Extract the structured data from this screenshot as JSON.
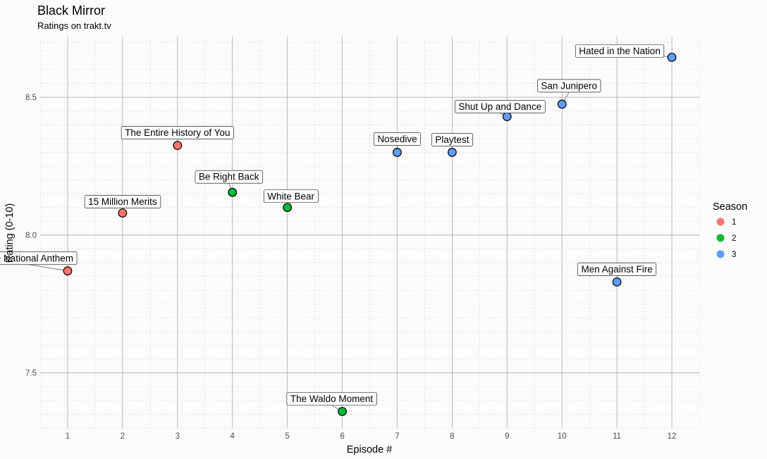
{
  "chart_data": {
    "type": "scatter",
    "title": "Black Mirror",
    "subtitle": "Ratings on trakt.tv",
    "xlabel": "Episode #",
    "ylabel": "Rating (0-10)",
    "xlim": [
      0.5,
      12.5
    ],
    "ylim": [
      7.3,
      8.72
    ],
    "x_ticks": [
      1,
      2,
      3,
      4,
      5,
      6,
      7,
      8,
      9,
      10,
      11,
      12
    ],
    "y_ticks": [
      7.5,
      8.0,
      8.5
    ],
    "y_tick_labels": [
      "7.5",
      "8.0",
      "8.5"
    ],
    "grid": true,
    "legend": {
      "title": "Season",
      "position": "right",
      "items": [
        {
          "label": "1",
          "color": "#f8766d"
        },
        {
          "label": "2",
          "color": "#00ba38"
        },
        {
          "label": "3",
          "color": "#619cff"
        }
      ]
    },
    "points": [
      {
        "episode": 1,
        "rating": 7.87,
        "season": "1",
        "label": "The National Anthem"
      },
      {
        "episode": 2,
        "rating": 8.08,
        "season": "1",
        "label": "15 Million Merits"
      },
      {
        "episode": 3,
        "rating": 8.325,
        "season": "1",
        "label": "The Entire History of You"
      },
      {
        "episode": 4,
        "rating": 8.155,
        "season": "2",
        "label": "Be Right Back"
      },
      {
        "episode": 5,
        "rating": 8.1,
        "season": "2",
        "label": "White Bear"
      },
      {
        "episode": 6,
        "rating": 7.36,
        "season": "2",
        "label": "The Waldo Moment"
      },
      {
        "episode": 7,
        "rating": 8.3,
        "season": "3",
        "label": "Nosedive"
      },
      {
        "episode": 8,
        "rating": 8.3,
        "season": "3",
        "label": "Playtest"
      },
      {
        "episode": 9,
        "rating": 8.43,
        "season": "3",
        "label": "Shut Up and Dance"
      },
      {
        "episode": 10,
        "rating": 8.475,
        "season": "3",
        "label": "San Junipero"
      },
      {
        "episode": 11,
        "rating": 7.83,
        "season": "3",
        "label": "Men Against Fire"
      },
      {
        "episode": 12,
        "rating": 8.645,
        "season": "3",
        "label": "Hated in the Nation"
      }
    ]
  }
}
